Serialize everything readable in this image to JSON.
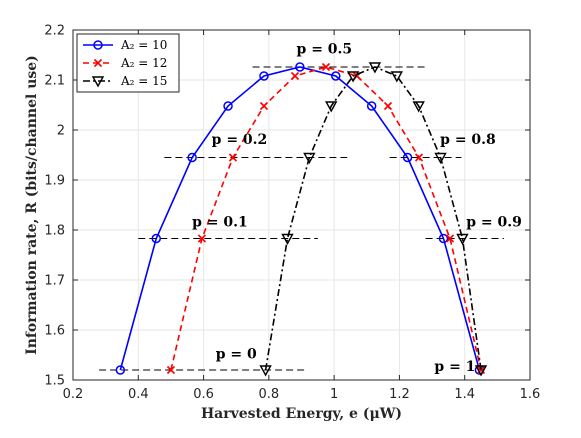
{
  "chart_data": {
    "type": "line",
    "xlabel": "Harvested Energy, e (μW)",
    "ylabel": "Information rate, R (bits/channel use)",
    "xlim": [
      0.2,
      1.6
    ],
    "ylim": [
      1.5,
      2.2
    ],
    "xticks": [
      "0.2",
      "0.4",
      "0.6",
      "0.8",
      "1",
      "1.2",
      "1.4",
      "1.6"
    ],
    "yticks": [
      "1.5",
      "1.6",
      "1.7",
      "1.8",
      "1.9",
      "2",
      "2.1",
      "2.2"
    ],
    "grid": true,
    "legend_position": "top-left",
    "series": [
      {
        "name": "A₂ = 10",
        "color": "#0000ff",
        "style": "solid",
        "marker": "circle",
        "x": [
          0.345,
          0.455,
          0.565,
          0.675,
          0.785,
          0.895,
          1.005,
          1.115,
          1.225,
          1.335,
          1.445
        ],
        "y": [
          1.52,
          1.783,
          1.945,
          2.048,
          2.108,
          2.126,
          2.108,
          2.048,
          1.945,
          1.783,
          1.52
        ]
      },
      {
        "name": "A₂ = 12",
        "color": "#ff0000",
        "style": "dashed",
        "marker": "x",
        "x": [
          0.5,
          0.595,
          0.69,
          0.785,
          0.88,
          0.975,
          1.07,
          1.165,
          1.26,
          1.355,
          1.45
        ],
        "y": [
          1.52,
          1.783,
          1.945,
          2.048,
          2.108,
          2.126,
          2.108,
          2.048,
          1.945,
          1.783,
          1.52
        ]
      },
      {
        "name": "A₂ = 15",
        "color": "#000000",
        "style": "dashdot",
        "marker": "triangle-down",
        "x": [
          0.79,
          0.857,
          0.924,
          0.991,
          1.058,
          1.125,
          1.192,
          1.259,
          1.326,
          1.393,
          1.45
        ],
        "y": [
          1.52,
          1.783,
          1.945,
          2.048,
          2.108,
          2.126,
          2.108,
          2.048,
          1.945,
          1.783,
          1.52
        ]
      }
    ],
    "reference_lines": [
      {
        "y": 1.52,
        "x_from": 0.28,
        "x_to": 0.92
      },
      {
        "y": 1.783,
        "x_from": 0.4,
        "x_to": 0.95
      },
      {
        "y": 1.945,
        "x_from": 0.48,
        "x_to": 1.04
      },
      {
        "y": 2.126,
        "x_from": 0.75,
        "x_to": 1.28
      },
      {
        "y": 1.945,
        "x_from": 1.17,
        "x_to": 1.39
      },
      {
        "y": 1.783,
        "x_from": 1.28,
        "x_to": 1.52
      }
    ],
    "annotations": [
      {
        "text": "p = 0",
        "x": 0.7,
        "y": 1.543
      },
      {
        "text": "p = 0.1",
        "x": 0.65,
        "y": 1.807
      },
      {
        "text": "p = 0.2",
        "x": 0.71,
        "y": 1.972
      },
      {
        "text": "p = 0.5",
        "x": 0.97,
        "y": 2.153
      },
      {
        "text": "p = 0.8",
        "x": 1.41,
        "y": 1.972
      },
      {
        "text": "p = 0.9",
        "x": 1.49,
        "y": 1.807
      },
      {
        "text": "p = 1",
        "x": 1.37,
        "y": 1.518
      }
    ]
  }
}
